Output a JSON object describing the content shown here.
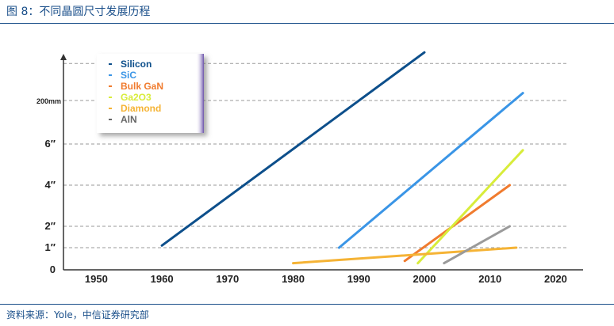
{
  "figure": {
    "title": "图 8：不同晶圆尺寸发展历程",
    "source": "资料来源：Yole，中信证券研究部"
  },
  "chart_data": {
    "type": "line",
    "title": "",
    "xlabel": "",
    "ylabel": "",
    "xlim": [
      1945,
      2022
    ],
    "x_ticks": [
      "1950",
      "1960",
      "1970",
      "1980",
      "1990",
      "2000",
      "2010",
      "2020"
    ],
    "y_ticks": [
      {
        "label": "0",
        "value": 0
      },
      {
        "label": "1″",
        "value": 1
      },
      {
        "label": "2″",
        "value": 2
      },
      {
        "label": "4″",
        "value": 4
      },
      {
        "label": "6″",
        "value": 6
      },
      {
        "label": "200mm",
        "value": 8
      },
      {
        "label": "",
        "value": 10
      }
    ],
    "grid": true,
    "legend_position": "top-left",
    "series": [
      {
        "name": "Silicon",
        "color": "#0d4f8b",
        "x": [
          1960,
          2000
        ],
        "y": [
          1.1,
          10.6
        ]
      },
      {
        "name": "SiC",
        "color": "#3a95e6",
        "x": [
          1987,
          2015
        ],
        "y": [
          1.0,
          8.4
        ]
      },
      {
        "name": "Bulk GaN",
        "color": "#f07b2e",
        "x": [
          1997,
          2013
        ],
        "y": [
          0.4,
          4.0
        ]
      },
      {
        "name": "Ga2O3",
        "color": "#d8ec3a",
        "x": [
          1999,
          2015
        ],
        "y": [
          0.3,
          5.7
        ]
      },
      {
        "name": "Diamond",
        "color": "#f5b335",
        "x": [
          1980,
          2014
        ],
        "y": [
          0.3,
          1.0
        ]
      },
      {
        "name": "AlN",
        "color": "#9a9a9a",
        "x": [
          2003,
          2013
        ],
        "y": [
          0.3,
          2.0
        ]
      }
    ]
  },
  "legend": {
    "items": [
      {
        "label": "Silicon",
        "color": "#0d4f8b"
      },
      {
        "label": "SiC",
        "color": "#3a95e6"
      },
      {
        "label": "Bulk GaN",
        "color": "#f07b2e"
      },
      {
        "label": "Ga2O3",
        "color": "#d8ec3a"
      },
      {
        "label": "Diamond",
        "color": "#f5b335"
      },
      {
        "label": "AlN",
        "color": "#666666"
      }
    ]
  }
}
